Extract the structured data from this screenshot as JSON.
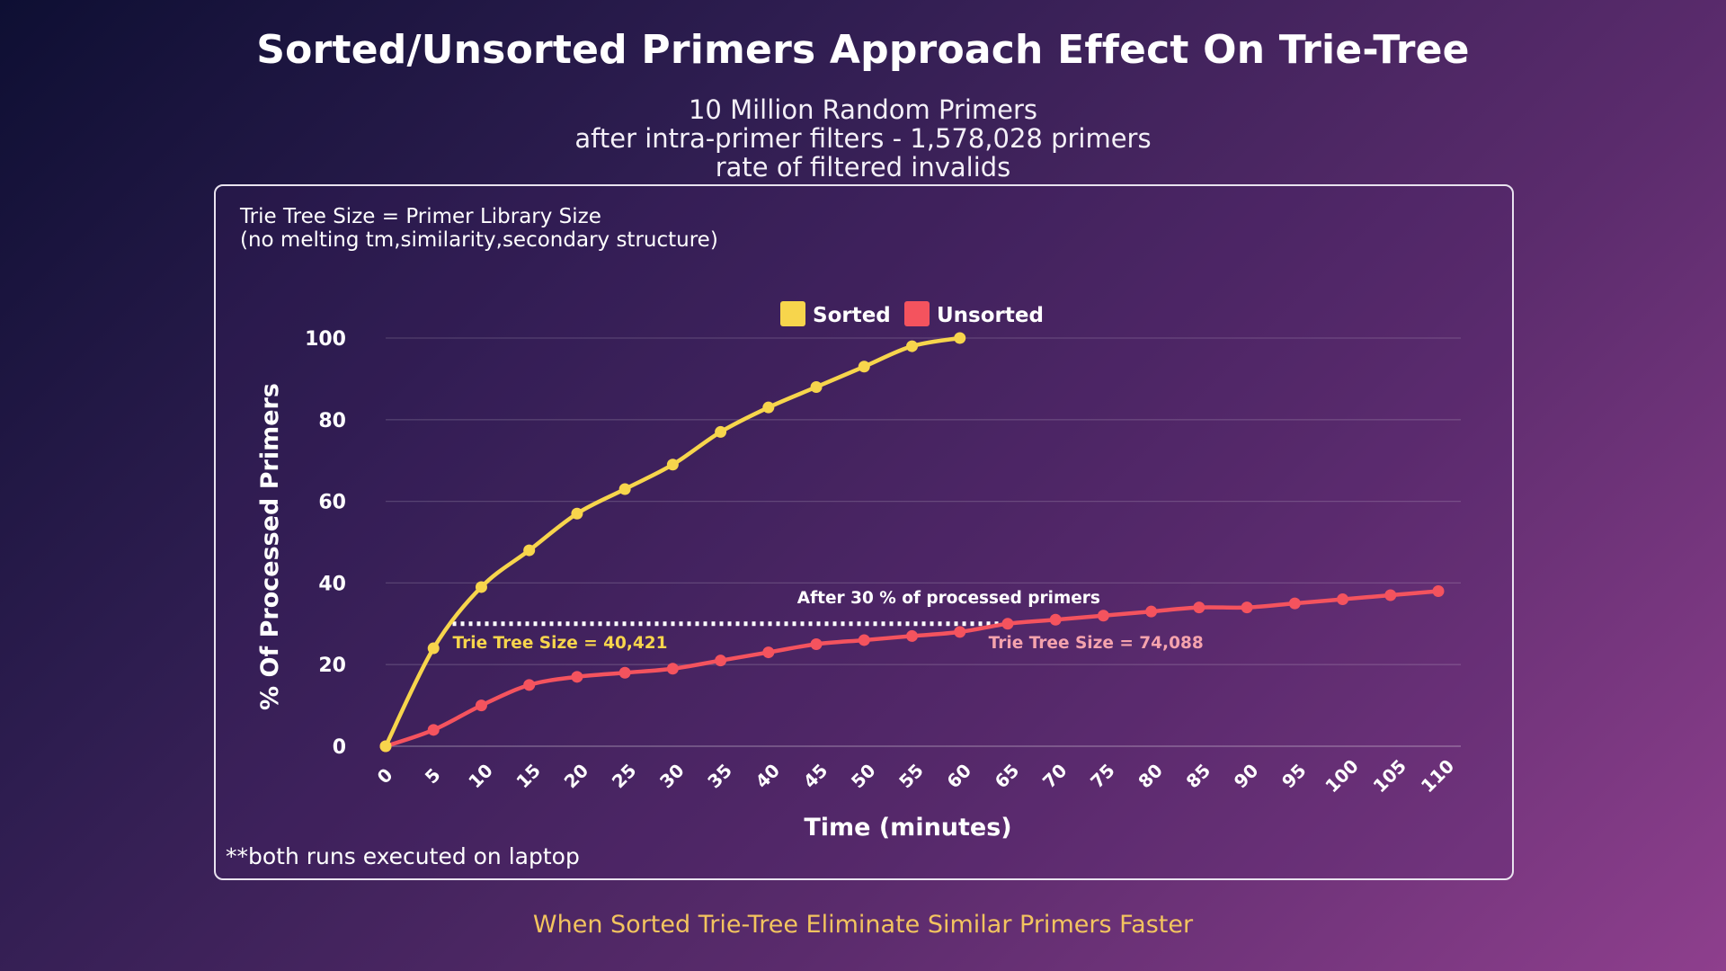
{
  "chart_data": {
    "type": "line",
    "title": "Sorted/Unsorted Primers Approach Effect On Trie-Tree",
    "subtitle": [
      "10 Million Random Primers",
      "after intra-primer filters - 1,578,028 primers",
      "rate of filtered invalids"
    ],
    "note": [
      "Trie Tree Size = Primer Library Size",
      "(no melting tm,similarity,secondary structure)"
    ],
    "xlabel": "Time (minutes)",
    "ylabel": "% Of Processed Primers",
    "xlim": [
      0,
      110
    ],
    "ylim": [
      0,
      100
    ],
    "x_ticks": [
      0,
      5,
      10,
      15,
      20,
      25,
      30,
      35,
      40,
      45,
      50,
      55,
      60,
      65,
      70,
      75,
      80,
      85,
      90,
      95,
      100,
      105,
      110
    ],
    "y_ticks": [
      0,
      20,
      40,
      60,
      80,
      100
    ],
    "grid": true,
    "legend_position": "top",
    "series": [
      {
        "name": "Sorted",
        "color": "#f7d54c",
        "x": [
          0,
          5,
          10,
          15,
          20,
          25,
          30,
          35,
          40,
          45,
          50,
          55,
          60
        ],
        "values": [
          0,
          24,
          39,
          48,
          57,
          63,
          69,
          77,
          83,
          88,
          93,
          98,
          100
        ]
      },
      {
        "name": "Unsorted",
        "color": "#f4535e",
        "x": [
          0,
          5,
          10,
          15,
          20,
          25,
          30,
          35,
          40,
          45,
          50,
          55,
          60,
          65,
          70,
          75,
          80,
          85,
          90,
          95,
          100,
          105,
          110
        ],
        "values": [
          0,
          4,
          10,
          15,
          17,
          18,
          19,
          21,
          23,
          25,
          26,
          27,
          28,
          30,
          31,
          32,
          33,
          34,
          34,
          35,
          36,
          37,
          38
        ]
      }
    ],
    "annotations": [
      {
        "text": "After 30 % of processed primers",
        "x": 43,
        "y": 35,
        "color": "#ffffff"
      },
      {
        "text": "Trie Tree Size = 40,421",
        "x": 7,
        "y": 24,
        "color": "#f7d54c"
      },
      {
        "text": "Trie Tree Size = 74,088",
        "x": 63,
        "y": 24,
        "color": "#f5a3ad"
      }
    ],
    "threshold_line": {
      "y": 30,
      "x_start": 7,
      "x_end": 65
    },
    "footnote": "**both runs executed on laptop"
  },
  "footer": "When Sorted Trie-Tree Eliminate Similar Primers Faster"
}
